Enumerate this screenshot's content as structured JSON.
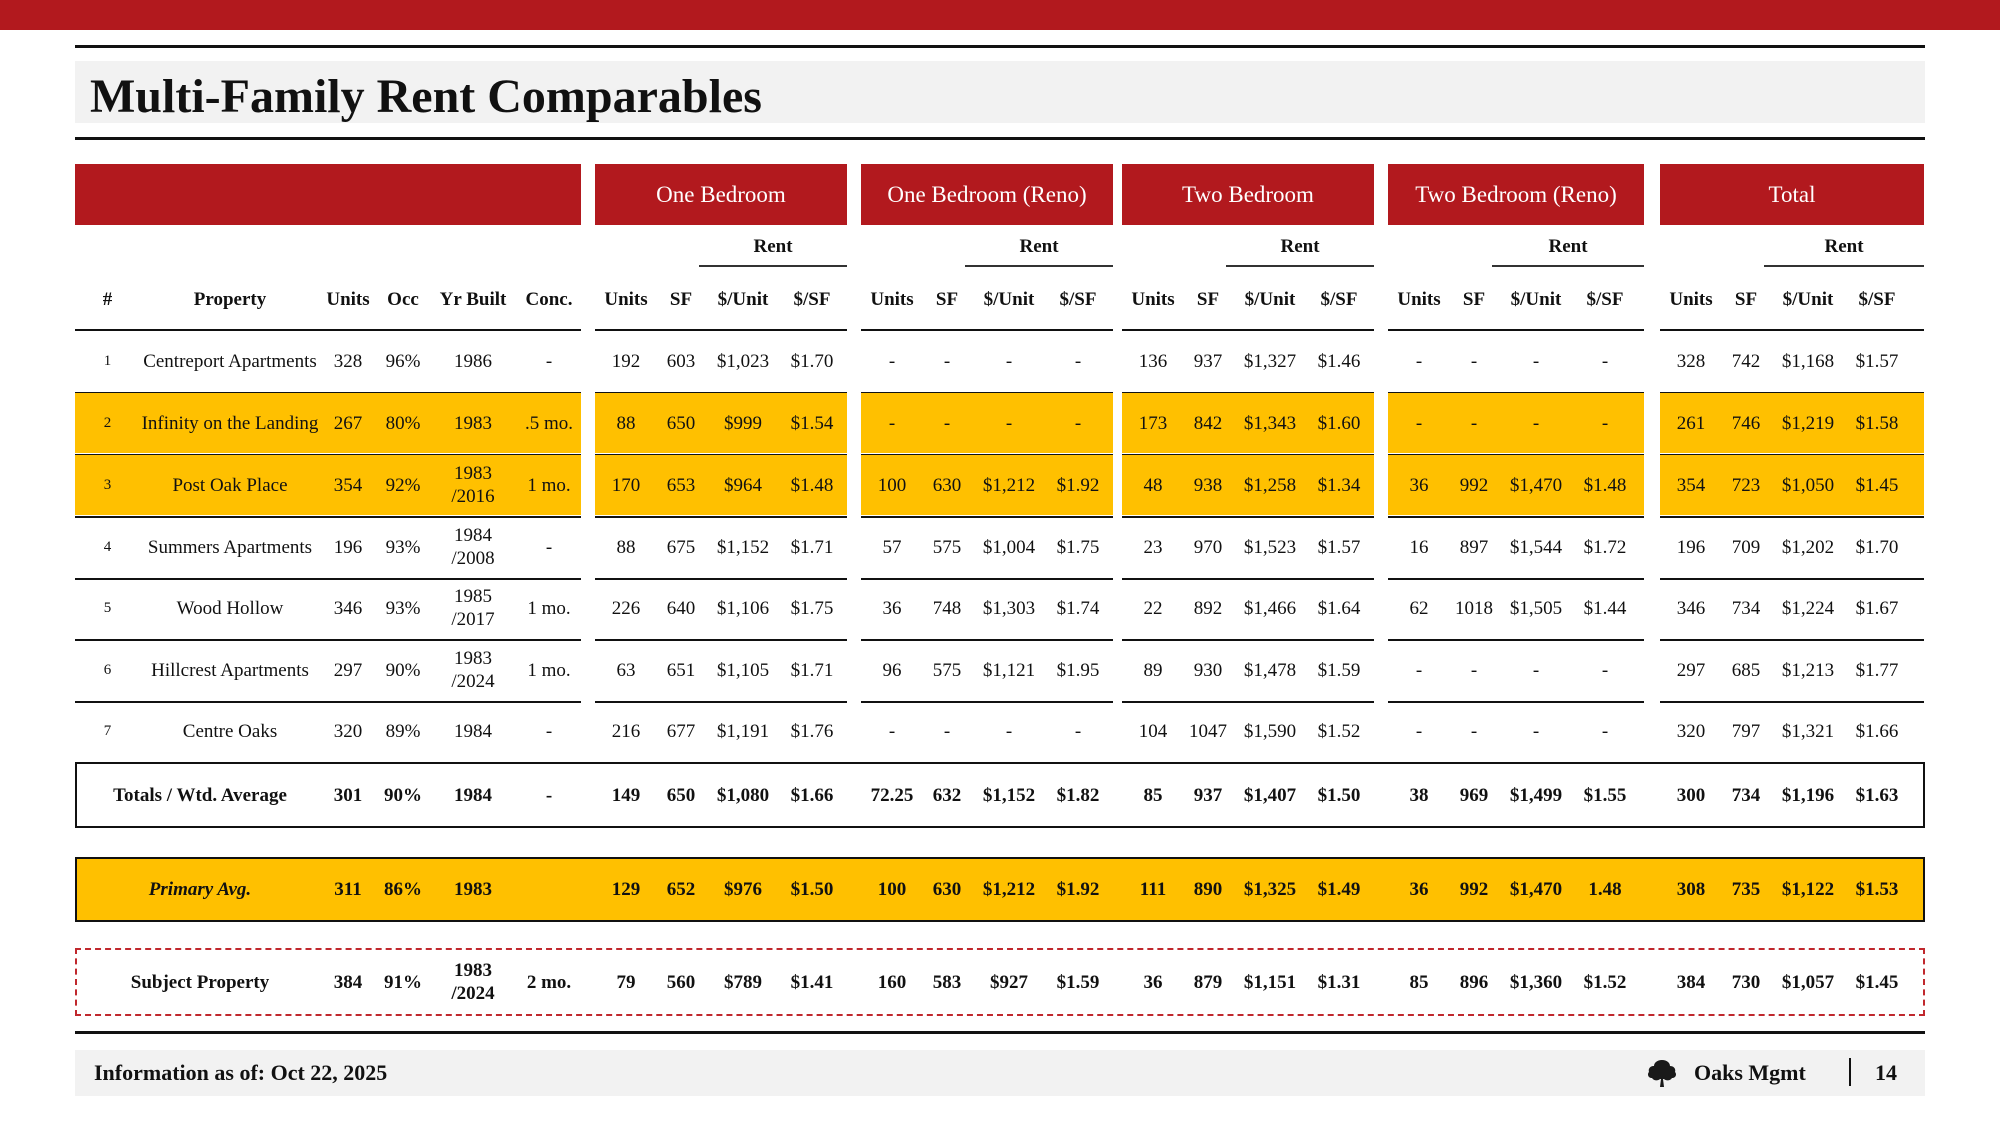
{
  "title": "Multi-Family Rent Comparables",
  "groups": [
    "One Bedroom",
    "One Bedroom (Reno)",
    "Two Bedroom",
    "Two Bedroom (Reno)",
    "Total"
  ],
  "rent_label": "Rent",
  "property_headers": [
    "#",
    "Property",
    "Units",
    "Occ",
    "Yr Built",
    "Conc."
  ],
  "unit_headers": [
    "Units",
    "SF",
    "$/Unit",
    "$/SF"
  ],
  "rows": [
    {
      "num": "1",
      "property": "Centreport Apartments",
      "units": "328",
      "occ": "96%",
      "yr": "1986",
      "conc": "-",
      "highlight": false,
      "vals": [
        "192",
        "603",
        "$1,023",
        "$1.70",
        "-",
        "-",
        "-",
        "-",
        "136",
        "937",
        "$1,327",
        "$1.46",
        "-",
        "-",
        "-",
        "-",
        "328",
        "742",
        "$1,168",
        "$1.57"
      ]
    },
    {
      "num": "2",
      "property": "Infinity on the Landing",
      "units": "267",
      "occ": "80%",
      "yr": "1983",
      "conc": ".5  mo.",
      "highlight": true,
      "vals": [
        "88",
        "650",
        "$999",
        "$1.54",
        "-",
        "-",
        "-",
        "-",
        "173",
        "842",
        "$1,343",
        "$1.60",
        "-",
        "-",
        "-",
        "-",
        "261",
        "746",
        "$1,219",
        "$1.58"
      ]
    },
    {
      "num": "3",
      "property": "Post Oak Place",
      "units": "354",
      "occ": "92%",
      "yr": "1983 /2016",
      "conc": "1 mo.",
      "highlight": true,
      "vals": [
        "170",
        "653",
        "$964",
        "$1.48",
        "100",
        "630",
        "$1,212",
        "$1.92",
        "48",
        "938",
        "$1,258",
        "$1.34",
        "36",
        "992",
        "$1,470",
        "$1.48",
        "354",
        "723",
        "$1,050",
        "$1.45"
      ]
    },
    {
      "num": "4",
      "property": "Summers Apartments",
      "units": "196",
      "occ": "93%",
      "yr": "1984 /2008",
      "conc": "-",
      "highlight": false,
      "vals": [
        "88",
        "675",
        "$1,152",
        "$1.71",
        "57",
        "575",
        "$1,004",
        "$1.75",
        "23",
        "970",
        "$1,523",
        "$1.57",
        "16",
        "897",
        "$1,544",
        "$1.72",
        "196",
        "709",
        "$1,202",
        "$1.70"
      ]
    },
    {
      "num": "5",
      "property": "Wood Hollow",
      "units": "346",
      "occ": "93%",
      "yr": "1985 /2017",
      "conc": "1 mo.",
      "highlight": false,
      "vals": [
        "226",
        "640",
        "$1,106",
        "$1.75",
        "36",
        "748",
        "$1,303",
        "$1.74",
        "22",
        "892",
        "$1,466",
        "$1.64",
        "62",
        "1018",
        "$1,505",
        "$1.44",
        "346",
        "734",
        "$1,224",
        "$1.67"
      ]
    },
    {
      "num": "6",
      "property": "Hillcrest Apartments",
      "units": "297",
      "occ": "90%",
      "yr": "1983 /2024",
      "conc": "1 mo.",
      "highlight": false,
      "vals": [
        "63",
        "651",
        "$1,105",
        "$1.71",
        "96",
        "575",
        "$1,121",
        "$1.95",
        "89",
        "930",
        "$1,478",
        "$1.59",
        "-",
        "-",
        "-",
        "-",
        "297",
        "685",
        "$1,213",
        "$1.77"
      ]
    },
    {
      "num": "7",
      "property": "Centre Oaks",
      "units": "320",
      "occ": "89%",
      "yr": "1984",
      "conc": "-",
      "highlight": false,
      "vals": [
        "216",
        "677",
        "$1,191",
        "$1.76",
        "-",
        "-",
        "-",
        "-",
        "104",
        "1047",
        "$1,590",
        "$1.52",
        "-",
        "-",
        "-",
        "-",
        "320",
        "797",
        "$1,321",
        "$1.66"
      ]
    }
  ],
  "totals": {
    "label": "Totals / Wtd. Average",
    "units": "301",
    "occ": "90%",
    "yr": "1984",
    "conc": "-",
    "vals": [
      "149",
      "650",
      "$1,080",
      "$1.66",
      "72.25",
      "632",
      "$1,152",
      "$1.82",
      "85",
      "937",
      "$1,407",
      "$1.50",
      "38",
      "969",
      "$1,499",
      "$1.55",
      "300",
      "734",
      "$1,196",
      "$1.63"
    ]
  },
  "primary": {
    "label": "Primary Avg.",
    "units": "311",
    "occ": "86%",
    "yr": "1983",
    "conc": "",
    "vals": [
      "129",
      "652",
      "$976",
      "$1.50",
      "100",
      "630",
      "$1,212",
      "$1.92",
      "111",
      "890",
      "$1,325",
      "$1.49",
      "36",
      "992",
      "$1,470",
      "1.48",
      "308",
      "735",
      "$1,122",
      "$1.53"
    ]
  },
  "subject": {
    "label": "Subject Property",
    "units": "384",
    "occ": "91%",
    "yr": "1983 /2024",
    "conc": "2 mo.",
    "vals": [
      "79",
      "560",
      "$789",
      "$1.41",
      "160",
      "583",
      "$927",
      "$1.59",
      "36",
      "879",
      "$1,151",
      "$1.31",
      "85",
      "896",
      "$1,360",
      "$1.52",
      "384",
      "730",
      "$1,057",
      "$1.45"
    ]
  },
  "footer": {
    "info": "Information as of: Oct 22, 2025",
    "brand": "Oaks Mgmt",
    "page": "14"
  },
  "colors": {
    "accent_red": "#b2191e",
    "highlight_yellow": "#ffc000",
    "subject_border": "#c0282d"
  },
  "icons": {
    "brand_logo": "oak-tree-icon"
  }
}
